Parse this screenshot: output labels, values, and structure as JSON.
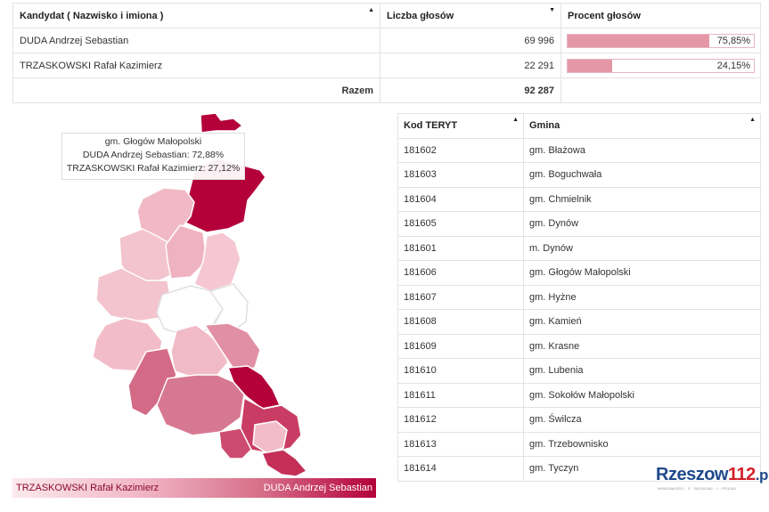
{
  "results": {
    "headers": {
      "candidate": "Kandydat ( Nazwisko i imiona )",
      "votes": "Liczba głosów",
      "percent": "Procent głosów"
    },
    "rows": [
      {
        "name": "DUDA Andrzej Sebastian",
        "votes": "69 996",
        "percent_label": "75,85%",
        "percent": 75.85
      },
      {
        "name": "TRZASKOWSKI Rafał Kazimierz",
        "votes": "22 291",
        "percent_label": "24,15%",
        "percent": 24.15
      }
    ],
    "total_label": "Razem",
    "total_votes": "92 287"
  },
  "tooltip": {
    "gmina": "gm. Głogów Małopolski",
    "line1": "DUDA Andrzej Sebastian: 72,88%",
    "line2": "TRZASKOWSKI Rafał Kazimierz: 27,12%"
  },
  "legend": {
    "left": "TRZASKOWSKI Rafał Kazimierz",
    "right": "DUDA Andrzej Sebastian"
  },
  "teryt": {
    "headers": {
      "code": "Kod TERYT",
      "gmina": "Gmina"
    },
    "rows": [
      {
        "code": "181602",
        "name": "gm. Błażowa"
      },
      {
        "code": "181603",
        "name": "gm. Boguchwała"
      },
      {
        "code": "181604",
        "name": "gm. Chmielnik"
      },
      {
        "code": "181605",
        "name": "gm. Dynów"
      },
      {
        "code": "181601",
        "name": "m. Dynów"
      },
      {
        "code": "181606",
        "name": "gm. Głogów Małopolski"
      },
      {
        "code": "181607",
        "name": "gm. Hyżne"
      },
      {
        "code": "181608",
        "name": "gm. Kamień"
      },
      {
        "code": "181609",
        "name": "gm. Krasne"
      },
      {
        "code": "181610",
        "name": "gm. Lubenia"
      },
      {
        "code": "181611",
        "name": "gm. Sokołów Małopolski"
      },
      {
        "code": "181612",
        "name": "gm. Świlcza"
      },
      {
        "code": "181613",
        "name": "gm. Trzebownisko"
      },
      {
        "code": "181614",
        "name": "gm. Tyczyn"
      }
    ]
  },
  "logo": {
    "part1": "Rzeszow",
    "part2": "112",
    "part3": ".pl",
    "tagline": "WIADOMOŚCI · Z · REGIONU · I · POLSKI"
  },
  "colors": {
    "accent": "#b4003b",
    "bar": "#e597a7",
    "logo_blue": "#1f4a8a",
    "logo_red": "#d31f2a"
  }
}
